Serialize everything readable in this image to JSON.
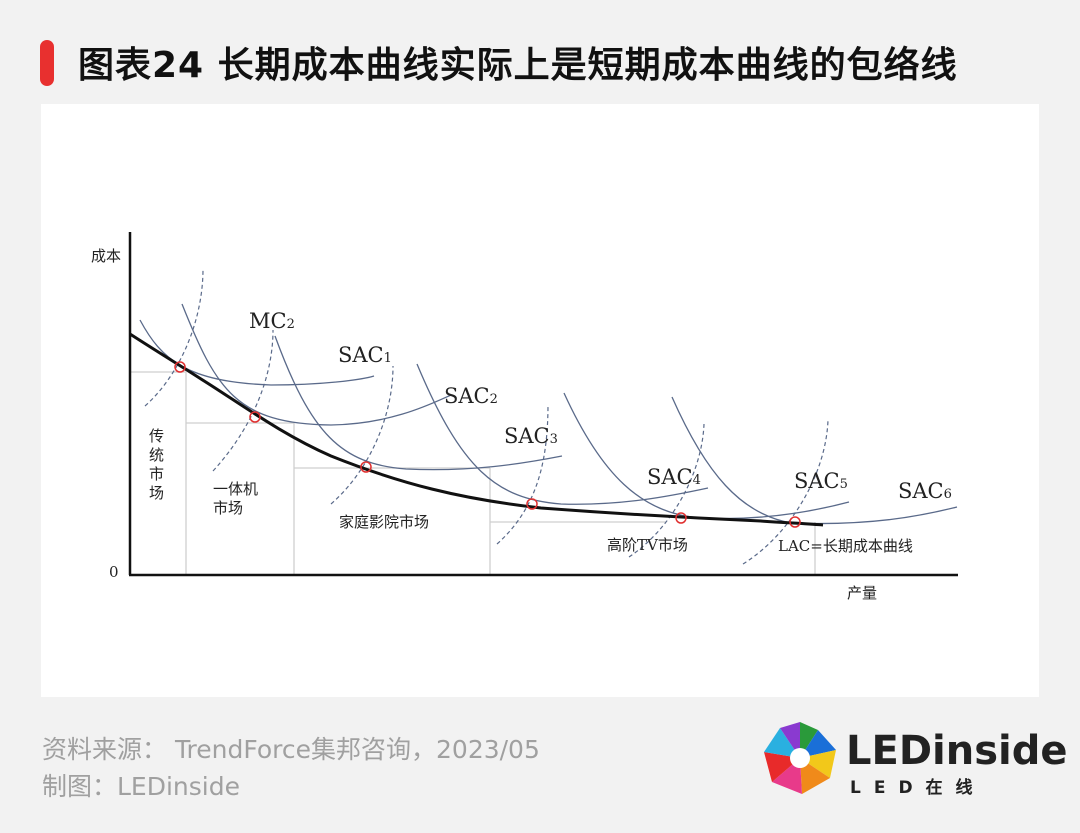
{
  "title": "图表24 长期成本曲线实际上是短期成本曲线的包络线",
  "diagram": {
    "y_axis_label": "成本",
    "x_axis_label": "产量",
    "origin_label": "0",
    "curve_labels": {
      "mc2": "MC",
      "mc2_sub": "2",
      "sac1": "SAC",
      "sac1_sub": "1",
      "sac2": "SAC",
      "sac2_sub": "2",
      "sac3": "SAC",
      "sac3_sub": "3",
      "sac4": "SAC",
      "sac4_sub": "4",
      "sac5": "SAC",
      "sac5_sub": "5",
      "sac6": "SAC",
      "sac6_sub": "6"
    },
    "markets": {
      "traditional_line1": "传",
      "traditional_line2": "统",
      "traditional_line3": "市",
      "traditional_line4": "场",
      "all_in_one_line1": "一体机",
      "all_in_one_line2": "市场",
      "home_theater": "家庭影院市场",
      "high_end_tv": "高阶TV市场"
    },
    "lac_label": "LAC=长期成本曲线",
    "colors": {
      "sac_curve": "#5a6a8a",
      "lac_curve": "#111111",
      "tangent_marker": "#e03030",
      "guide_line": "#cfcfcf"
    }
  },
  "footer": {
    "source": "资料来源： TrendForce集邦咨询，2023/05",
    "maker": "制图：LEDinside"
  },
  "logo": {
    "name": "LEDinside",
    "sub": "LED在线"
  }
}
